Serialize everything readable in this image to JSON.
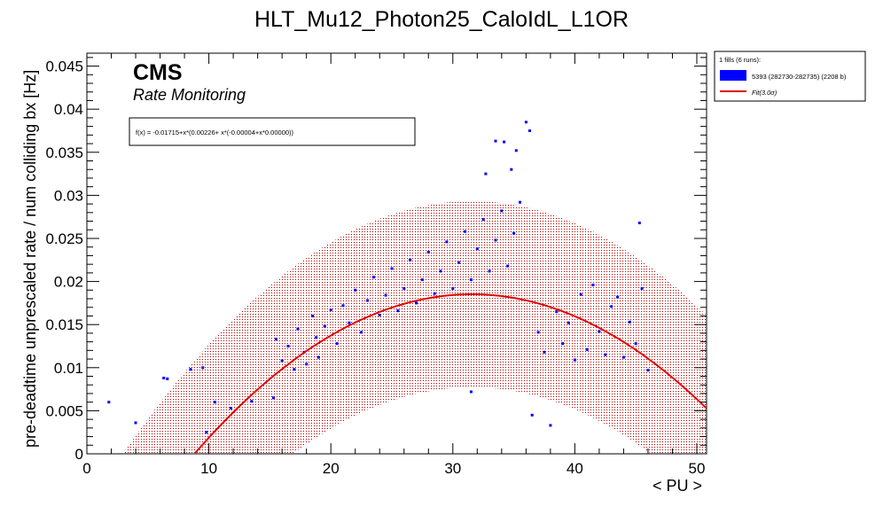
{
  "chart_data": {
    "type": "scatter",
    "title": "HLT_Mu12_Photon25_CaloIdL_L1OR",
    "xlabel": "< PU >",
    "ylabel": "pre-deadtime unprescaled rate / num colliding bx [Hz]",
    "xlim": [
      0,
      50.8
    ],
    "ylim": [
      0,
      0.0465
    ],
    "x_ticks": [
      "0",
      "10",
      "20",
      "30",
      "40",
      "50"
    ],
    "y_ticks": [
      "0",
      "0.005",
      "0.01",
      "0.015",
      "0.02",
      "0.025",
      "0.03",
      "0.035",
      "0.04",
      "0.045"
    ],
    "grid": false,
    "legend_placement": "outside-top-right",
    "watermark": {
      "experiment": "CMS",
      "subtitle": "Rate Monitoring"
    },
    "fit_formula": "f(x) = -0.01715+x*(0.00226+ x*(-0.00004+x*0.00000))",
    "fit": {
      "coefficients": [
        -0.01715,
        0.00226,
        -3.58e-05,
        0
      ],
      "band_sigma": 3.0,
      "band_halfwidth": 0.0108,
      "color": "#e00000"
    },
    "legend": {
      "header": "1 fills (6 runs):",
      "entries": [
        {
          "label": "5393 (282730-282735) (2208 b)",
          "color": "#0000ff"
        },
        {
          "label": "Fit(3.0σ)",
          "color": "#e00000"
        }
      ]
    },
    "series": [
      {
        "name": "5393 (282730-282735) (2208 b)",
        "color": "#0000ff",
        "points": [
          [
            1.8,
            0.006
          ],
          [
            4.0,
            0.0036
          ],
          [
            6.3,
            0.0088
          ],
          [
            6.6,
            0.0087
          ],
          [
            8.5,
            0.0098
          ],
          [
            9.5,
            0.01
          ],
          [
            9.8,
            0.0025
          ],
          [
            10.5,
            0.006
          ],
          [
            11.8,
            0.0053
          ],
          [
            13.5,
            0.0061
          ],
          [
            15.3,
            0.0065
          ],
          [
            15.5,
            0.0133
          ],
          [
            16.0,
            0.0108
          ],
          [
            16.5,
            0.0125
          ],
          [
            17.0,
            0.0098
          ],
          [
            17.3,
            0.0145
          ],
          [
            17.8,
            0.0118
          ],
          [
            18.0,
            0.0104
          ],
          [
            18.5,
            0.016
          ],
          [
            18.8,
            0.0135
          ],
          [
            19.0,
            0.0112
          ],
          [
            19.5,
            0.0148
          ],
          [
            20.0,
            0.0167
          ],
          [
            20.5,
            0.0128
          ],
          [
            21.0,
            0.0172
          ],
          [
            21.5,
            0.0152
          ],
          [
            22.0,
            0.019
          ],
          [
            22.5,
            0.0141
          ],
          [
            23.0,
            0.0178
          ],
          [
            23.5,
            0.0205
          ],
          [
            24.0,
            0.0161
          ],
          [
            24.5,
            0.0184
          ],
          [
            25.0,
            0.0215
          ],
          [
            25.5,
            0.0166
          ],
          [
            26.0,
            0.0192
          ],
          [
            26.5,
            0.0225
          ],
          [
            27.0,
            0.0175
          ],
          [
            27.5,
            0.0202
          ],
          [
            28.0,
            0.0234
          ],
          [
            28.5,
            0.0186
          ],
          [
            29.0,
            0.0212
          ],
          [
            29.5,
            0.0246
          ],
          [
            30.0,
            0.0192
          ],
          [
            30.5,
            0.0222
          ],
          [
            31.0,
            0.0258
          ],
          [
            31.5,
            0.0202
          ],
          [
            32.0,
            0.0238
          ],
          [
            32.5,
            0.0272
          ],
          [
            33.0,
            0.0212
          ],
          [
            33.5,
            0.0248
          ],
          [
            34.0,
            0.0282
          ],
          [
            34.5,
            0.0218
          ],
          [
            35.0,
            0.0256
          ],
          [
            35.5,
            0.0292
          ],
          [
            36.0,
            0.0385
          ],
          [
            35.2,
            0.0352
          ],
          [
            33.5,
            0.0363
          ],
          [
            34.2,
            0.0362
          ],
          [
            36.3,
            0.0375
          ],
          [
            32.7,
            0.0325
          ],
          [
            34.8,
            0.033
          ],
          [
            31.5,
            0.0072
          ],
          [
            36.5,
            0.0045
          ],
          [
            37.0,
            0.0141
          ],
          [
            37.5,
            0.0118
          ],
          [
            38.0,
            0.0033
          ],
          [
            38.5,
            0.0165
          ],
          [
            39.0,
            0.0128
          ],
          [
            39.5,
            0.0152
          ],
          [
            40.0,
            0.0109
          ],
          [
            40.5,
            0.0185
          ],
          [
            41.0,
            0.0121
          ],
          [
            41.5,
            0.0196
          ],
          [
            42.0,
            0.0142
          ],
          [
            42.5,
            0.0115
          ],
          [
            43.0,
            0.0171
          ],
          [
            43.5,
            0.0182
          ],
          [
            44.0,
            0.0112
          ],
          [
            44.5,
            0.0153
          ],
          [
            45.0,
            0.0128
          ],
          [
            45.3,
            0.0268
          ],
          [
            45.5,
            0.0192
          ],
          [
            46.0,
            0.0097
          ]
        ]
      }
    ]
  }
}
